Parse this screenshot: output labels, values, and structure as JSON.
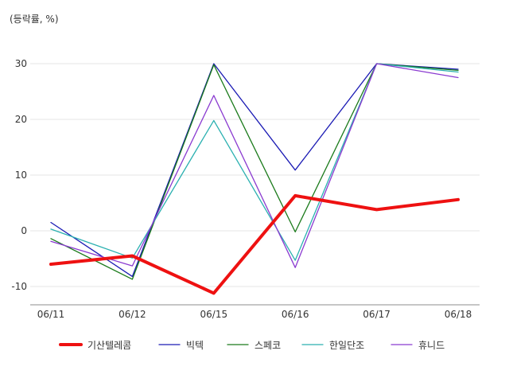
{
  "chart_data": {
    "type": "line",
    "title": "",
    "unit_label": "(등락률, %)",
    "xlabel": "",
    "ylabel": "",
    "categories": [
      "06/11",
      "06/12",
      "06/15",
      "06/16",
      "06/17",
      "06/18"
    ],
    "ylim": [
      -13.5,
      36
    ],
    "yticks": [
      -10,
      0,
      10,
      20,
      30
    ],
    "grid": true,
    "legend_position": "bottom",
    "series": [
      {
        "name": "기산텔레콤",
        "color": "#ee1111",
        "emphasis": true,
        "values": [
          -6.0,
          -4.5,
          -11.2,
          6.3,
          3.8,
          5.6
        ]
      },
      {
        "name": "빅텍",
        "color": "#1a1ab4",
        "emphasis": false,
        "values": [
          1.5,
          -8.2,
          30.0,
          10.9,
          30.0,
          29.0
        ]
      },
      {
        "name": "스페코",
        "color": "#1a7a1a",
        "emphasis": false,
        "values": [
          -1.4,
          -8.7,
          29.8,
          -0.2,
          30.0,
          28.8
        ]
      },
      {
        "name": "한일단조",
        "color": "#2ab0b0",
        "emphasis": false,
        "values": [
          0.3,
          -4.9,
          19.8,
          -5.3,
          30.0,
          28.5
        ]
      },
      {
        "name": "휴니드",
        "color": "#8a3ad0",
        "emphasis": false,
        "values": [
          -1.9,
          -6.3,
          24.3,
          -6.6,
          30.0,
          27.5
        ]
      }
    ]
  }
}
